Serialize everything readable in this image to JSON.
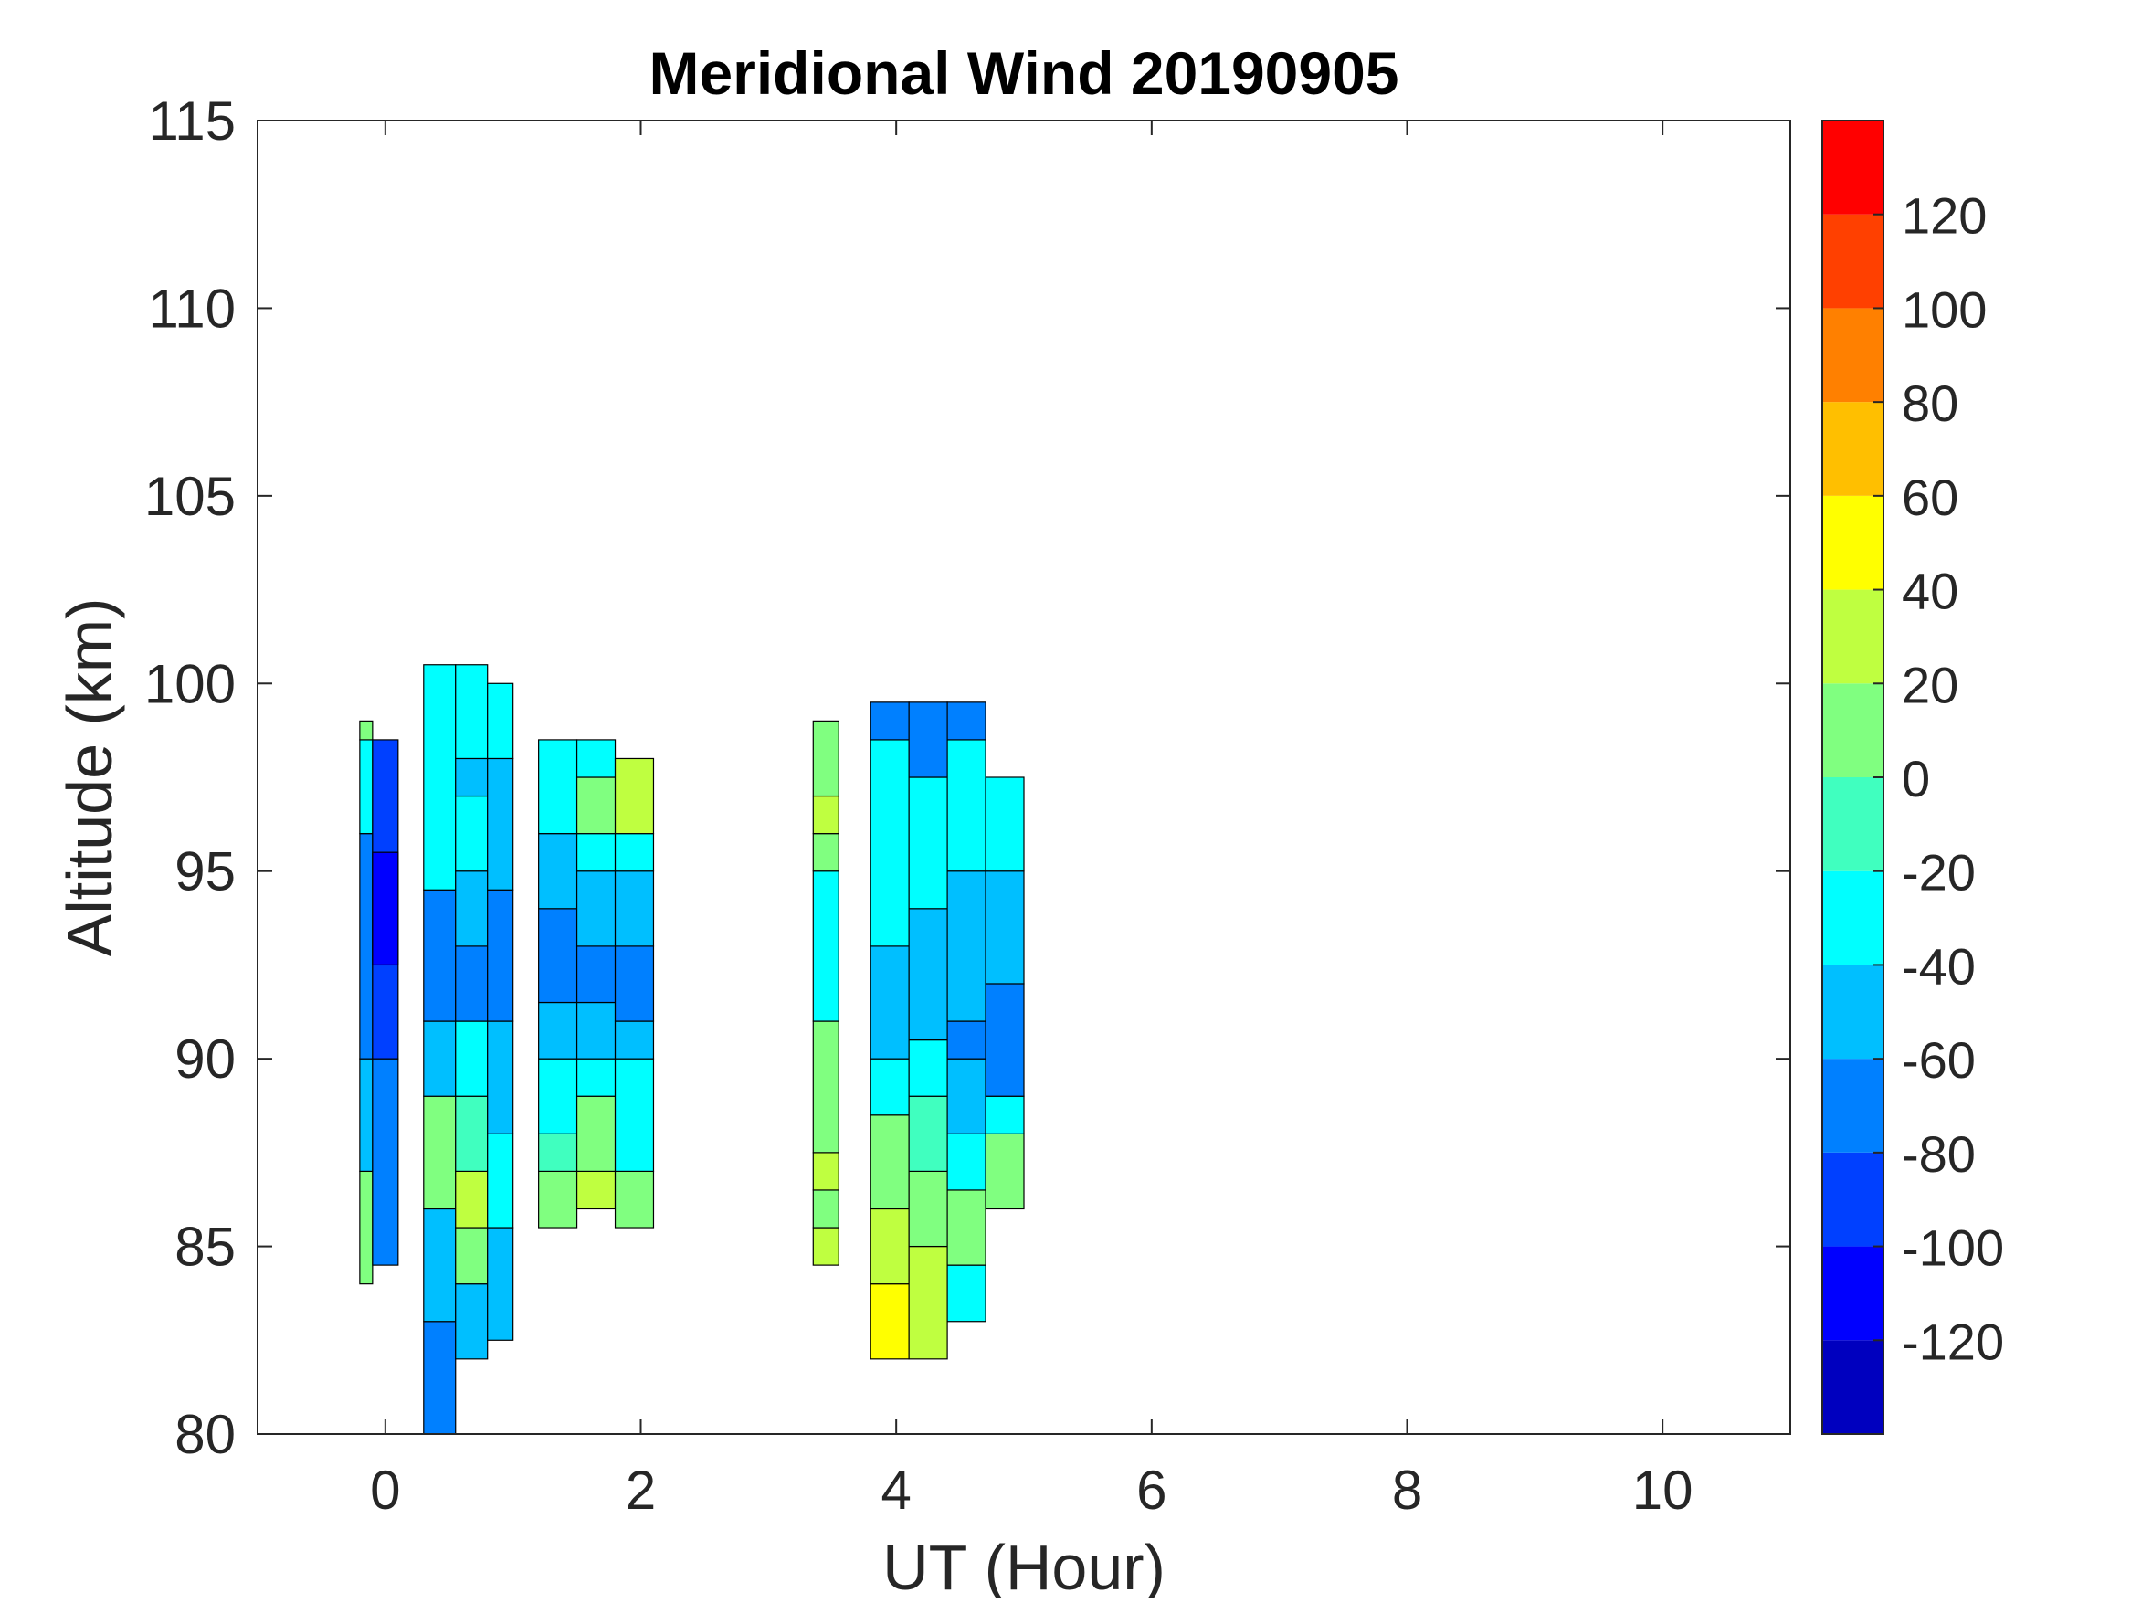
{
  "chart_data": {
    "type": "heatmap",
    "subtype": "filled-contour",
    "title": "Meridional Wind 20190905",
    "xlabel": "UT (Hour)",
    "ylabel": "Altitude (km)",
    "xlim": [
      -1,
      11
    ],
    "ylim": [
      80,
      115
    ],
    "xticks": [
      0,
      2,
      4,
      6,
      8,
      10
    ],
    "yticks": [
      80,
      85,
      90,
      95,
      100,
      105,
      110,
      115
    ],
    "grid": false,
    "colorbar": {
      "range": [
        -140,
        140
      ],
      "levels": [
        -140,
        -120,
        -100,
        -80,
        -60,
        -40,
        -20,
        0,
        20,
        40,
        60,
        80,
        100,
        120,
        140
      ],
      "ticks": [
        -120,
        -100,
        -80,
        -60,
        -40,
        -20,
        0,
        20,
        40,
        60,
        80,
        100,
        120
      ],
      "colors": [
        "#0000BF",
        "#0000FF",
        "#0040FF",
        "#0080FF",
        "#00BFFF",
        "#00FFFF",
        "#40FFBF",
        "#80FF80",
        "#BFFF40",
        "#FFFF00",
        "#FFBF00",
        "#FF8000",
        "#FF4000",
        "#FF0000"
      ],
      "placement": "right"
    },
    "columns": [
      {
        "x": [
          -0.2,
          -0.1
        ],
        "cells": [
          [
            84,
            87,
            10
          ],
          [
            87,
            90,
            -50
          ],
          [
            90,
            96,
            -70
          ],
          [
            96,
            98.5,
            -30
          ],
          [
            98.5,
            99,
            10
          ]
        ]
      },
      {
        "x": [
          -0.1,
          0.1
        ],
        "cells": [
          [
            84.5,
            90,
            -70
          ],
          [
            90,
            98.5,
            -90
          ],
          [
            92.5,
            95.5,
            -110
          ]
        ]
      },
      {
        "x": [
          0.3,
          0.55
        ],
        "cells": [
          [
            80,
            83,
            -70
          ],
          [
            83,
            86,
            -50
          ],
          [
            86,
            89,
            10
          ],
          [
            89,
            91,
            -50
          ],
          [
            91,
            94.5,
            -70
          ],
          [
            94.5,
            100.5,
            -30
          ]
        ]
      },
      {
        "x": [
          0.55,
          0.8
        ],
        "cells": [
          [
            82,
            84,
            -50
          ],
          [
            84,
            85.5,
            10
          ],
          [
            85.5,
            87,
            25
          ],
          [
            87,
            89,
            -10
          ],
          [
            89,
            91,
            -30
          ],
          [
            91,
            93,
            -70
          ],
          [
            93,
            95,
            -50
          ],
          [
            95,
            97,
            -30
          ],
          [
            97,
            98,
            -50
          ],
          [
            98,
            100.5,
            -30
          ]
        ]
      },
      {
        "x": [
          0.8,
          1.0
        ],
        "cells": [
          [
            82.5,
            85.5,
            -50
          ],
          [
            85.5,
            88,
            -30
          ],
          [
            88,
            91,
            -50
          ],
          [
            91,
            94.5,
            -70
          ],
          [
            94.5,
            98,
            -50
          ],
          [
            98,
            100,
            -30
          ]
        ]
      },
      {
        "x": [
          1.2,
          1.5
        ],
        "cells": [
          [
            85.5,
            87,
            10
          ],
          [
            87,
            88,
            -10
          ],
          [
            88,
            90,
            -30
          ],
          [
            90,
            91.5,
            -50
          ],
          [
            91.5,
            94,
            -70
          ],
          [
            94,
            96,
            -50
          ],
          [
            96,
            98.5,
            -30
          ]
        ]
      },
      {
        "x": [
          1.5,
          1.8
        ],
        "cells": [
          [
            86,
            87,
            25
          ],
          [
            87,
            89,
            10
          ],
          [
            89,
            90,
            -30
          ],
          [
            90,
            91.5,
            -50
          ],
          [
            91.5,
            93,
            -70
          ],
          [
            93,
            95,
            -50
          ],
          [
            95,
            96,
            -30
          ],
          [
            96,
            97.5,
            10
          ],
          [
            97.5,
            98.5,
            -30
          ]
        ]
      },
      {
        "x": [
          1.8,
          2.1
        ],
        "cells": [
          [
            85.5,
            87,
            10
          ],
          [
            87,
            90,
            -30
          ],
          [
            90,
            91,
            -50
          ],
          [
            91,
            93,
            -70
          ],
          [
            93,
            95,
            -50
          ],
          [
            95,
            96,
            -30
          ],
          [
            96,
            98,
            25
          ]
        ]
      },
      {
        "x": [
          3.35,
          3.55
        ],
        "cells": [
          [
            84.5,
            85.5,
            25
          ],
          [
            85.5,
            86.5,
            10
          ],
          [
            86.5,
            87.5,
            25
          ],
          [
            87.5,
            91,
            10
          ],
          [
            91,
            95,
            -30
          ],
          [
            95,
            96,
            10
          ],
          [
            96,
            97,
            25
          ],
          [
            97,
            99,
            10
          ]
        ]
      },
      {
        "x": [
          3.8,
          4.1
        ],
        "cells": [
          [
            82,
            84,
            50
          ],
          [
            84,
            86,
            25
          ],
          [
            86,
            88.5,
            10
          ],
          [
            88.5,
            90,
            -30
          ],
          [
            90,
            93,
            -50
          ],
          [
            93,
            98.5,
            -30
          ],
          [
            98.5,
            99.5,
            -70
          ]
        ]
      },
      {
        "x": [
          4.1,
          4.4
        ],
        "cells": [
          [
            82,
            85,
            25
          ],
          [
            85,
            87,
            10
          ],
          [
            87,
            89,
            -10
          ],
          [
            89,
            90.5,
            -30
          ],
          [
            90.5,
            94,
            -50
          ],
          [
            94,
            97.5,
            -30
          ],
          [
            97.5,
            99.5,
            -70
          ]
        ]
      },
      {
        "x": [
          4.4,
          4.7
        ],
        "cells": [
          [
            83,
            84.5,
            -30
          ],
          [
            84.5,
            86.5,
            10
          ],
          [
            86.5,
            88,
            -30
          ],
          [
            88,
            90,
            -50
          ],
          [
            90,
            91,
            -70
          ],
          [
            91,
            95,
            -50
          ],
          [
            95,
            98.5,
            -30
          ],
          [
            98.5,
            99.5,
            -70
          ]
        ]
      },
      {
        "x": [
          4.7,
          5.0
        ],
        "cells": [
          [
            86,
            88,
            10
          ],
          [
            88,
            89,
            -30
          ],
          [
            89,
            92,
            -70
          ],
          [
            92,
            95,
            -50
          ],
          [
            95,
            97.5,
            -30
          ]
        ]
      }
    ]
  }
}
